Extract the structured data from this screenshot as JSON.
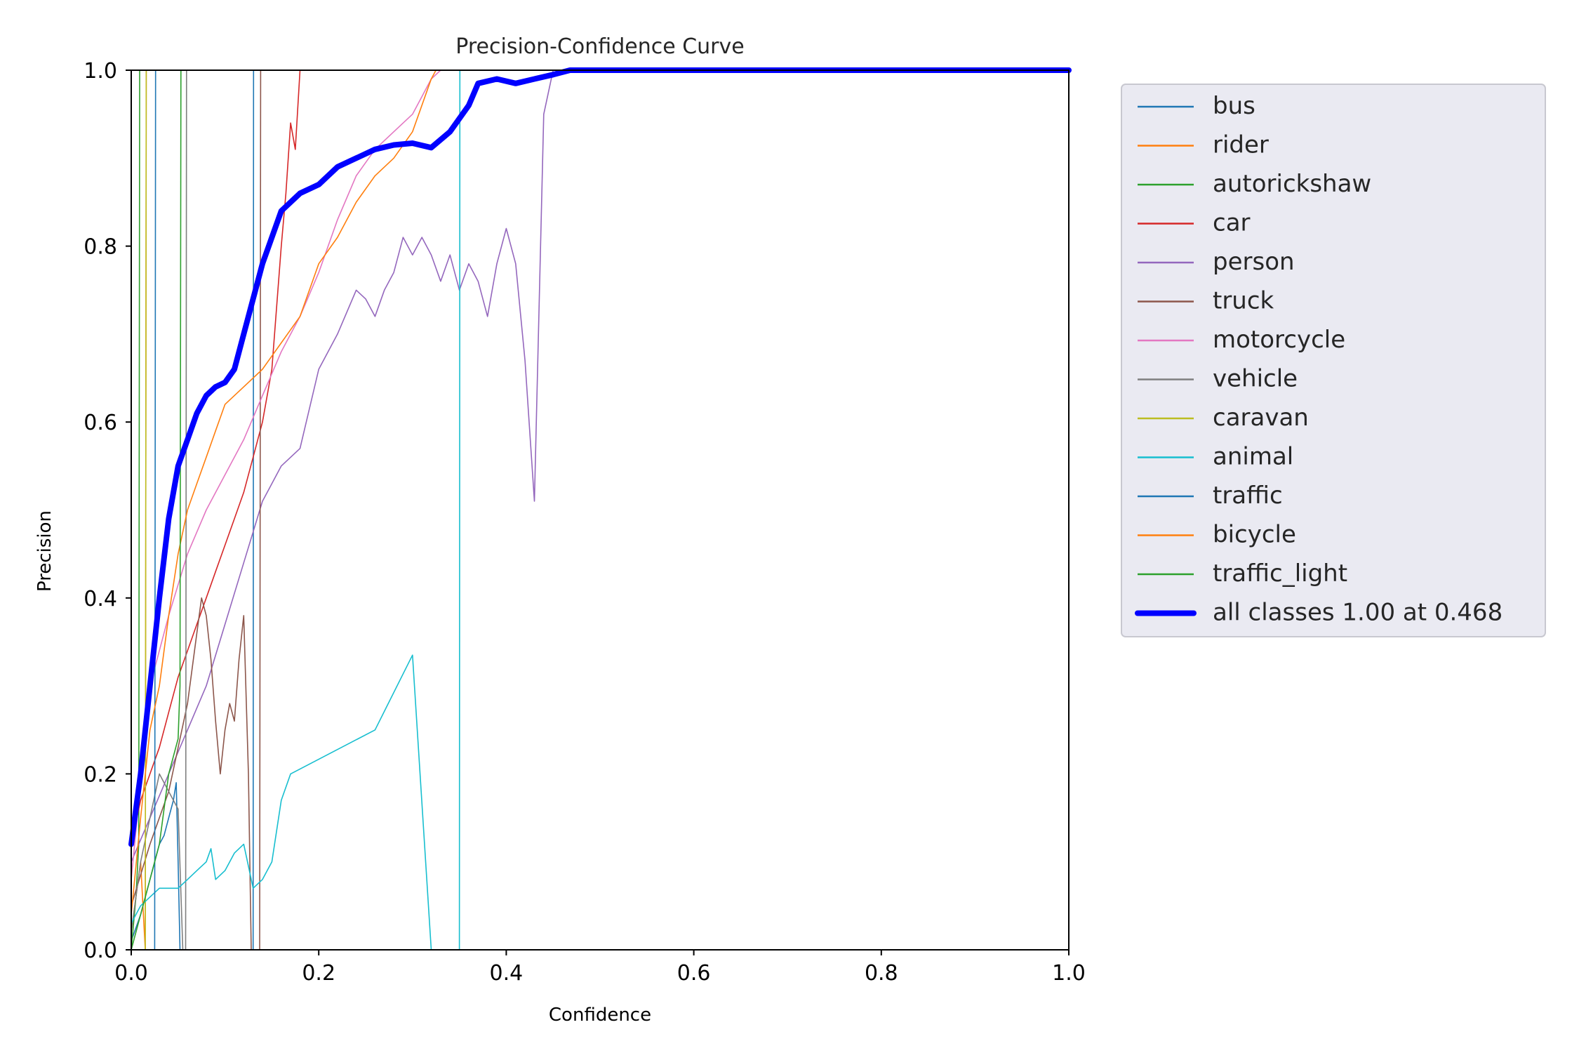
{
  "chart_data": {
    "type": "line",
    "title": "Precision-Confidence Curve",
    "xlabel": "Confidence",
    "ylabel": "Precision",
    "xlim": [
      0,
      1
    ],
    "ylim": [
      0,
      1
    ],
    "xticks": [
      "0.0",
      "0.2",
      "0.4",
      "0.6",
      "0.8",
      "1.0"
    ],
    "yticks": [
      "0.0",
      "0.2",
      "0.4",
      "0.6",
      "0.8",
      "1.0"
    ],
    "grid": false,
    "legend_position": "outside-right",
    "series": [
      {
        "name": "bus",
        "color": "#1f77b4",
        "width": 1,
        "points": [
          [
            0.0,
            0.01
          ],
          [
            0.01,
            0.04
          ],
          [
            0.02,
            0.08
          ],
          [
            0.025,
            0.1
          ],
          [
            0.03,
            0.12
          ],
          [
            0.035,
            0.13
          ],
          [
            0.04,
            0.15
          ],
          [
            0.045,
            0.17
          ],
          [
            0.048,
            0.19
          ],
          [
            0.05,
            0.1
          ],
          [
            0.052,
            0.0
          ],
          [
            0.13,
            0.0
          ],
          [
            0.1305,
            1.0
          ],
          [
            1.0,
            1.0
          ]
        ]
      },
      {
        "name": "rider",
        "color": "#ff7f0e",
        "width": 1,
        "points": [
          [
            0.0,
            0.02
          ],
          [
            0.01,
            0.1
          ],
          [
            0.015,
            0.0
          ],
          [
            0.016,
            1.0
          ],
          [
            0.017,
            1.0
          ]
        ]
      },
      {
        "name": "autorickshaw",
        "color": "#2ca02c",
        "width": 1,
        "points": [
          [
            0.0,
            0.0
          ],
          [
            0.005,
            0.06
          ],
          [
            0.008,
            0.12
          ],
          [
            0.009,
            1.0
          ],
          [
            1.0,
            1.0
          ]
        ]
      },
      {
        "name": "car",
        "color": "#d62728",
        "width": 1,
        "points": [
          [
            0.0,
            0.12
          ],
          [
            0.01,
            0.17
          ],
          [
            0.02,
            0.2
          ],
          [
            0.03,
            0.23
          ],
          [
            0.04,
            0.27
          ],
          [
            0.05,
            0.31
          ],
          [
            0.06,
            0.34
          ],
          [
            0.07,
            0.37
          ],
          [
            0.08,
            0.4
          ],
          [
            0.09,
            0.43
          ],
          [
            0.1,
            0.46
          ],
          [
            0.11,
            0.49
          ],
          [
            0.12,
            0.52
          ],
          [
            0.13,
            0.56
          ],
          [
            0.14,
            0.6
          ],
          [
            0.15,
            0.66
          ],
          [
            0.155,
            0.73
          ],
          [
            0.16,
            0.8
          ],
          [
            0.165,
            0.86
          ],
          [
            0.17,
            0.94
          ],
          [
            0.175,
            0.91
          ],
          [
            0.18,
            1.0
          ],
          [
            1.0,
            1.0
          ]
        ]
      },
      {
        "name": "person",
        "color": "#9467bd",
        "width": 1,
        "points": [
          [
            0.0,
            0.1
          ],
          [
            0.02,
            0.15
          ],
          [
            0.04,
            0.2
          ],
          [
            0.06,
            0.25
          ],
          [
            0.08,
            0.3
          ],
          [
            0.1,
            0.37
          ],
          [
            0.12,
            0.44
          ],
          [
            0.14,
            0.51
          ],
          [
            0.16,
            0.55
          ],
          [
            0.18,
            0.57
          ],
          [
            0.2,
            0.66
          ],
          [
            0.22,
            0.7
          ],
          [
            0.24,
            0.75
          ],
          [
            0.25,
            0.74
          ],
          [
            0.26,
            0.72
          ],
          [
            0.27,
            0.75
          ],
          [
            0.28,
            0.77
          ],
          [
            0.29,
            0.81
          ],
          [
            0.3,
            0.79
          ],
          [
            0.31,
            0.81
          ],
          [
            0.32,
            0.79
          ],
          [
            0.33,
            0.76
          ],
          [
            0.34,
            0.79
          ],
          [
            0.35,
            0.75
          ],
          [
            0.36,
            0.78
          ],
          [
            0.37,
            0.76
          ],
          [
            0.38,
            0.72
          ],
          [
            0.39,
            0.78
          ],
          [
            0.4,
            0.82
          ],
          [
            0.41,
            0.78
          ],
          [
            0.42,
            0.67
          ],
          [
            0.43,
            0.51
          ],
          [
            0.44,
            0.95
          ],
          [
            0.45,
            1.0
          ],
          [
            1.0,
            1.0
          ]
        ]
      },
      {
        "name": "truck",
        "color": "#8c564b",
        "width": 1,
        "points": [
          [
            0.0,
            0.05
          ],
          [
            0.02,
            0.12
          ],
          [
            0.04,
            0.18
          ],
          [
            0.06,
            0.28
          ],
          [
            0.07,
            0.36
          ],
          [
            0.075,
            0.4
          ],
          [
            0.08,
            0.38
          ],
          [
            0.085,
            0.33
          ],
          [
            0.09,
            0.26
          ],
          [
            0.095,
            0.2
          ],
          [
            0.1,
            0.25
          ],
          [
            0.105,
            0.28
          ],
          [
            0.11,
            0.26
          ],
          [
            0.115,
            0.33
          ],
          [
            0.12,
            0.38
          ],
          [
            0.125,
            0.2
          ],
          [
            0.128,
            0.0
          ],
          [
            0.137,
            0.0
          ],
          [
            0.138,
            1.0
          ],
          [
            1.0,
            1.0
          ]
        ]
      },
      {
        "name": "motorcycle",
        "color": "#e377c2",
        "width": 1,
        "points": [
          [
            0.0,
            0.08
          ],
          [
            0.02,
            0.3
          ],
          [
            0.04,
            0.38
          ],
          [
            0.06,
            0.45
          ],
          [
            0.08,
            0.5
          ],
          [
            0.1,
            0.54
          ],
          [
            0.12,
            0.58
          ],
          [
            0.14,
            0.63
          ],
          [
            0.16,
            0.68
          ],
          [
            0.18,
            0.72
          ],
          [
            0.2,
            0.77
          ],
          [
            0.22,
            0.83
          ],
          [
            0.24,
            0.88
          ],
          [
            0.26,
            0.91
          ],
          [
            0.28,
            0.93
          ],
          [
            0.3,
            0.95
          ],
          [
            0.31,
            0.97
          ],
          [
            0.32,
            0.99
          ],
          [
            0.33,
            1.0
          ],
          [
            1.0,
            1.0
          ]
        ]
      },
      {
        "name": "vehicle",
        "color": "#7f7f7f",
        "width": 1,
        "points": [
          [
            0.0,
            0.02
          ],
          [
            0.01,
            0.1
          ],
          [
            0.02,
            0.15
          ],
          [
            0.03,
            0.2
          ],
          [
            0.04,
            0.18
          ],
          [
            0.05,
            0.16
          ],
          [
            0.055,
            0.0
          ],
          [
            0.058,
            0.0
          ],
          [
            0.059,
            1.0
          ],
          [
            1.0,
            1.0
          ]
        ]
      },
      {
        "name": "caravan",
        "color": "#bcbd22",
        "width": 1,
        "points": [
          [
            0.0,
            0.0
          ],
          [
            0.015,
            0.0
          ],
          [
            0.016,
            1.0
          ],
          [
            1.0,
            1.0
          ]
        ]
      },
      {
        "name": "animal",
        "color": "#17becf",
        "width": 1,
        "points": [
          [
            0.0,
            0.03
          ],
          [
            0.01,
            0.05
          ],
          [
            0.02,
            0.06
          ],
          [
            0.03,
            0.07
          ],
          [
            0.04,
            0.07
          ],
          [
            0.05,
            0.07
          ],
          [
            0.06,
            0.08
          ],
          [
            0.07,
            0.09
          ],
          [
            0.08,
            0.1
          ],
          [
            0.085,
            0.115
          ],
          [
            0.09,
            0.08
          ],
          [
            0.1,
            0.09
          ],
          [
            0.11,
            0.11
          ],
          [
            0.12,
            0.12
          ],
          [
            0.13,
            0.07
          ],
          [
            0.14,
            0.08
          ],
          [
            0.15,
            0.1
          ],
          [
            0.16,
            0.17
          ],
          [
            0.17,
            0.2
          ],
          [
            0.26,
            0.25
          ],
          [
            0.3,
            0.335
          ],
          [
            0.32,
            0.0
          ],
          [
            0.35,
            0.0
          ],
          [
            0.3505,
            1.0
          ],
          [
            1.0,
            1.0
          ]
        ]
      },
      {
        "name": "traffic",
        "color": "#1f77b4",
        "width": 1,
        "points": [
          [
            0.0,
            0.0
          ],
          [
            0.025,
            0.0
          ],
          [
            0.026,
            1.0
          ],
          [
            1.0,
            1.0
          ]
        ]
      },
      {
        "name": "bicycle",
        "color": "#ff7f0e",
        "width": 1,
        "points": [
          [
            0.0,
            0.04
          ],
          [
            0.01,
            0.15
          ],
          [
            0.02,
            0.25
          ],
          [
            0.03,
            0.3
          ],
          [
            0.04,
            0.38
          ],
          [
            0.05,
            0.45
          ],
          [
            0.06,
            0.5
          ],
          [
            0.07,
            0.53
          ],
          [
            0.08,
            0.56
          ],
          [
            0.09,
            0.59
          ],
          [
            0.1,
            0.62
          ],
          [
            0.12,
            0.64
          ],
          [
            0.14,
            0.66
          ],
          [
            0.16,
            0.69
          ],
          [
            0.18,
            0.72
          ],
          [
            0.2,
            0.78
          ],
          [
            0.22,
            0.81
          ],
          [
            0.24,
            0.85
          ],
          [
            0.26,
            0.88
          ],
          [
            0.28,
            0.9
          ],
          [
            0.3,
            0.93
          ],
          [
            0.32,
            0.99
          ],
          [
            0.325,
            1.0
          ],
          [
            1.0,
            1.0
          ]
        ]
      },
      {
        "name": "traffic_light",
        "color": "#2ca02c",
        "width": 1,
        "points": [
          [
            0.0,
            0.0
          ],
          [
            0.02,
            0.08
          ],
          [
            0.03,
            0.12
          ],
          [
            0.04,
            0.2
          ],
          [
            0.05,
            0.24
          ],
          [
            0.052,
            0.3
          ],
          [
            0.053,
            1.0
          ],
          [
            1.0,
            1.0
          ]
        ]
      },
      {
        "name": "all classes 1.00 at 0.468",
        "color": "#0000ff",
        "width": 5,
        "points": [
          [
            0.0,
            0.12
          ],
          [
            0.01,
            0.2
          ],
          [
            0.02,
            0.3
          ],
          [
            0.03,
            0.4
          ],
          [
            0.04,
            0.49
          ],
          [
            0.05,
            0.55
          ],
          [
            0.06,
            0.58
          ],
          [
            0.07,
            0.61
          ],
          [
            0.08,
            0.63
          ],
          [
            0.09,
            0.64
          ],
          [
            0.1,
            0.645
          ],
          [
            0.11,
            0.66
          ],
          [
            0.12,
            0.7
          ],
          [
            0.14,
            0.78
          ],
          [
            0.16,
            0.84
          ],
          [
            0.18,
            0.86
          ],
          [
            0.2,
            0.87
          ],
          [
            0.22,
            0.89
          ],
          [
            0.24,
            0.9
          ],
          [
            0.26,
            0.91
          ],
          [
            0.28,
            0.915
          ],
          [
            0.3,
            0.917
          ],
          [
            0.32,
            0.912
          ],
          [
            0.34,
            0.93
          ],
          [
            0.36,
            0.96
          ],
          [
            0.37,
            0.985
          ],
          [
            0.39,
            0.99
          ],
          [
            0.41,
            0.985
          ],
          [
            0.43,
            0.99
          ],
          [
            0.45,
            0.995
          ],
          [
            0.468,
            1.0
          ],
          [
            1.0,
            1.0
          ]
        ]
      }
    ]
  }
}
